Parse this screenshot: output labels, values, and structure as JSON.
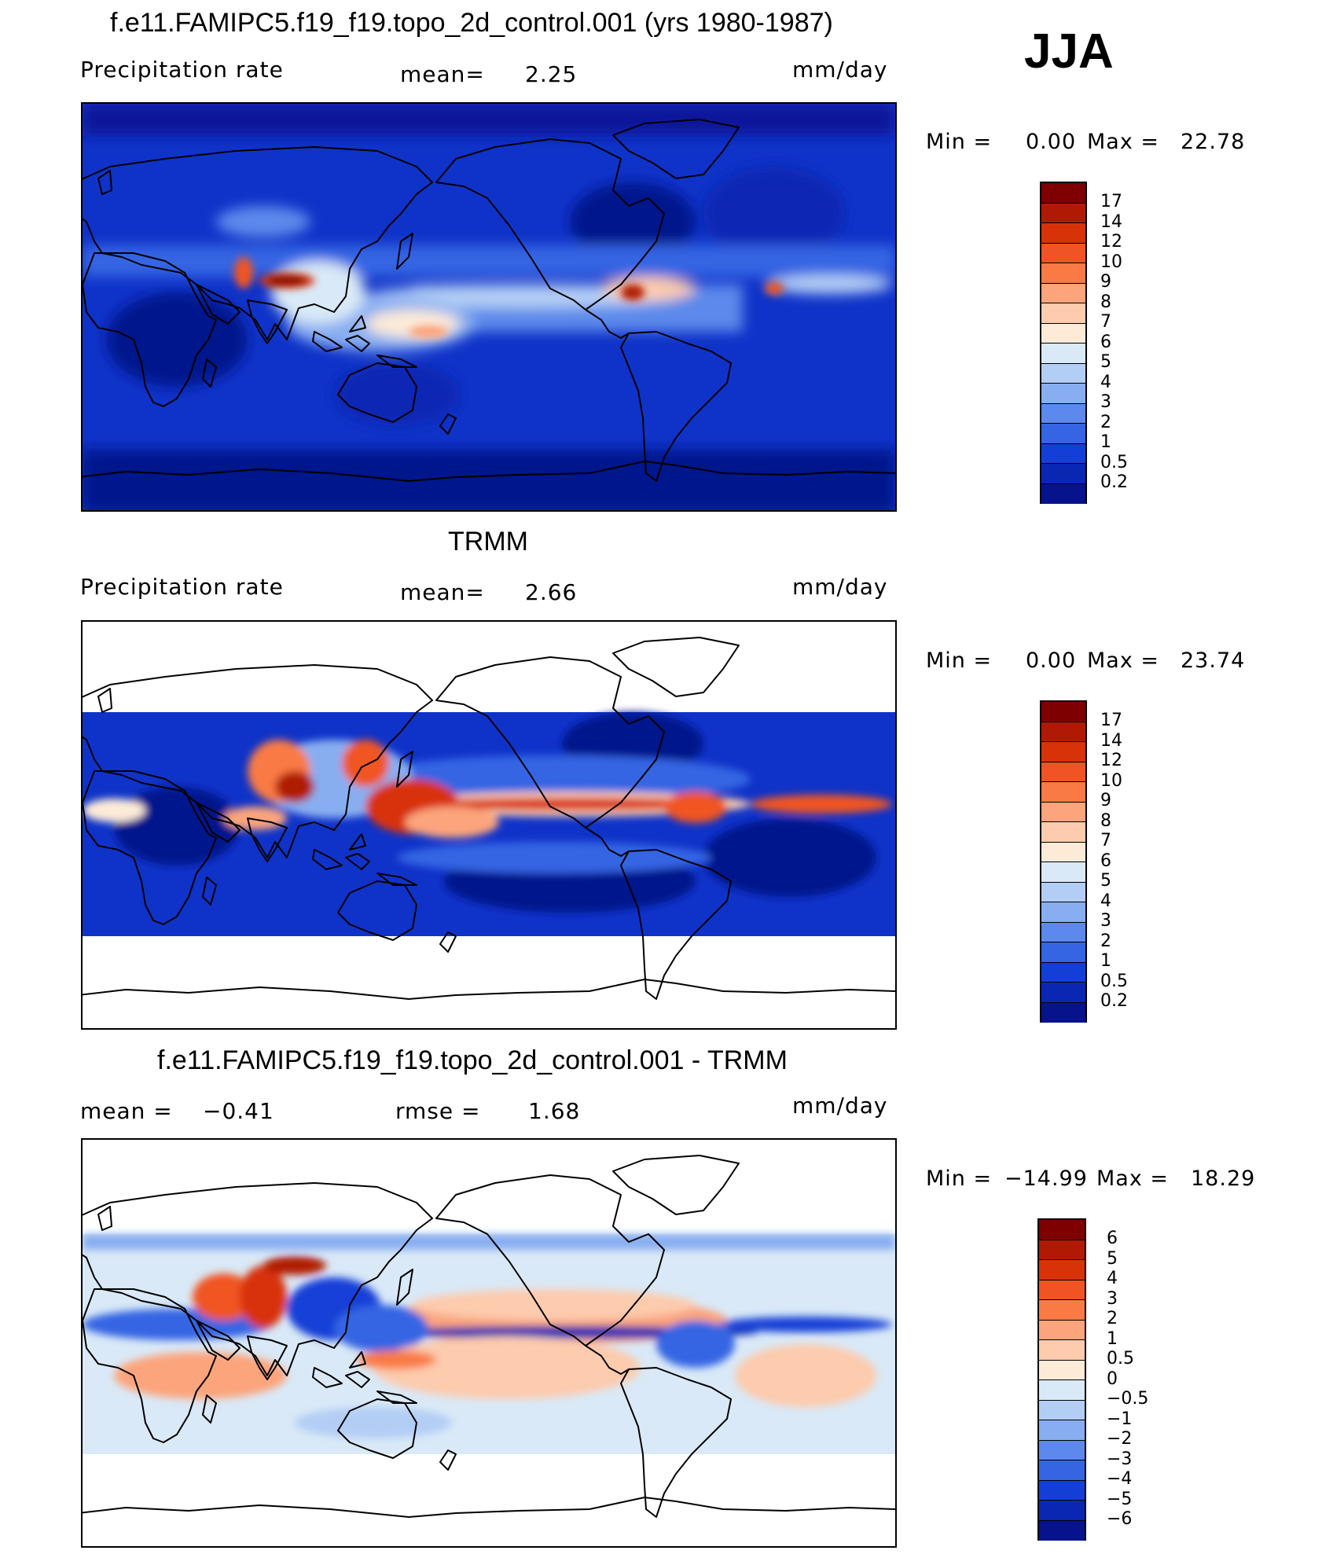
{
  "season": "JJA",
  "panels": [
    {
      "title": "f.e11.FAMIPC5.f19_f19.topo_2d_control.001 (yrs 1980-1987)",
      "left_label": "Precipitation  rate",
      "center_label": "mean=",
      "center_value": "2.25",
      "units": "mm/day",
      "min_label": "Min  =",
      "min_value": "0.00",
      "max_label": "Max  =",
      "max_value": "22.78",
      "colorbar_labels": [
        "17",
        "14",
        "12",
        "10",
        "9",
        "8",
        "7",
        "6",
        "5",
        "4",
        "3",
        "2",
        "1",
        "0.5",
        "0.2"
      ],
      "colorbar_colors": [
        "#7f0000",
        "#b01a05",
        "#d83209",
        "#f05424",
        "#f97a45",
        "#fca47c",
        "#fdcbad",
        "#fdebd8",
        "#d9e9f7",
        "#b3cef5",
        "#88aef1",
        "#5c89eb",
        "#3565e3",
        "#143fd7",
        "#0a27b4",
        "#06138c"
      ]
    },
    {
      "title": "TRMM",
      "left_label": "Precipitation  rate",
      "center_label": "mean=",
      "center_value": "2.66",
      "units": "mm/day",
      "min_label": "Min  =",
      "min_value": "0.00",
      "max_label": "Max  =",
      "max_value": "23.74",
      "colorbar_labels": [
        "17",
        "14",
        "12",
        "10",
        "9",
        "8",
        "7",
        "6",
        "5",
        "4",
        "3",
        "2",
        "1",
        "0.5",
        "0.2"
      ],
      "colorbar_colors": [
        "#7f0000",
        "#b01a05",
        "#d83209",
        "#f05424",
        "#f97a45",
        "#fca47c",
        "#fdcbad",
        "#fdebd8",
        "#d9e9f7",
        "#b3cef5",
        "#88aef1",
        "#5c89eb",
        "#3565e3",
        "#143fd7",
        "#0a27b4",
        "#06138c"
      ]
    },
    {
      "title": "f.e11.FAMIPC5.f19_f19.topo_2d_control.001 - TRMM",
      "left_label": "mean  =",
      "left_value": "−0.41",
      "center_label": "rmse  =",
      "center_value": "1.68",
      "units": "mm/day",
      "min_label": "Min  =",
      "min_value": "−14.99",
      "max_label": "Max  =",
      "max_value": "18.29",
      "colorbar_labels": [
        "6",
        "5",
        "4",
        "3",
        "2",
        "1",
        "0.5",
        "0",
        "−0.5",
        "−1",
        "−2",
        "−3",
        "−4",
        "−5",
        "−6"
      ],
      "colorbar_colors": [
        "#7f0000",
        "#b01a05",
        "#d83209",
        "#f05424",
        "#f97a45",
        "#fca47c",
        "#fdcbad",
        "#fdebd8",
        "#d9e9f7",
        "#b3cef5",
        "#88aef1",
        "#5c89eb",
        "#3565e3",
        "#143fd7",
        "#0a27b4",
        "#06138c"
      ]
    }
  ]
}
